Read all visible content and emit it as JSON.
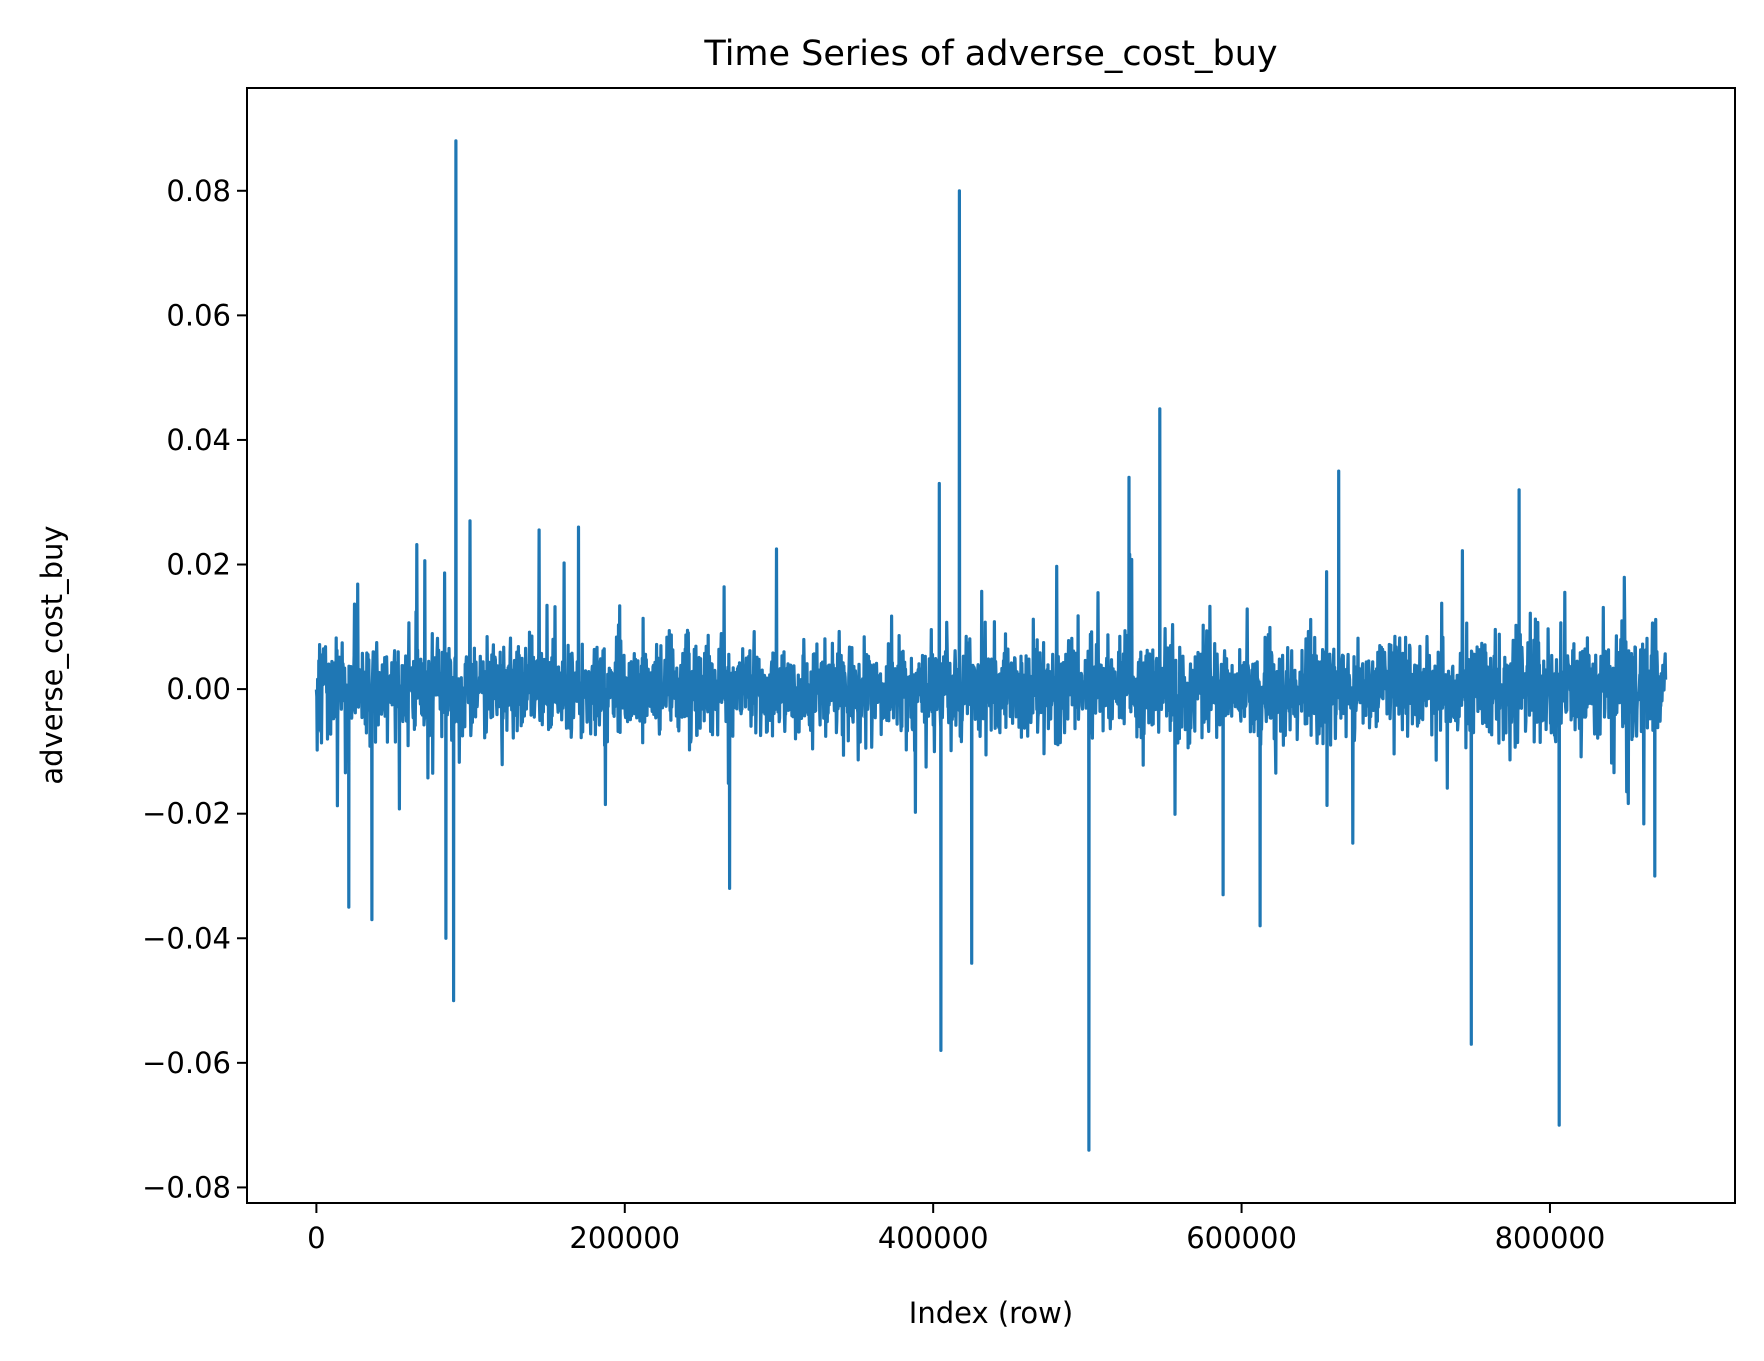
{
  "chart_data": {
    "type": "line",
    "title": "Time Series of adverse_cost_buy",
    "xlabel": "Index (row)",
    "ylabel": "adverse_cost_buy",
    "xlim": [
      -45000,
      920000
    ],
    "ylim": [
      -0.0825,
      0.0965
    ],
    "xticks": [
      0,
      200000,
      400000,
      600000,
      800000
    ],
    "xtick_labels": [
      "0",
      "200000",
      "400000",
      "600000",
      "800000"
    ],
    "yticks": [
      -0.08,
      -0.06,
      -0.04,
      -0.02,
      0.0,
      0.02,
      0.04,
      0.06,
      0.08
    ],
    "ytick_labels": [
      "−0.08",
      "−0.06",
      "−0.04",
      "−0.02",
      "0.00",
      "0.02",
      "0.04",
      "0.06",
      "0.08"
    ],
    "grid": false,
    "legend": "none",
    "series": [
      {
        "color": "#1f77b4",
        "x_range": [
          0,
          875000
        ],
        "notable_points": [
          {
            "x": 21000,
            "y": -0.035
          },
          {
            "x": 36000,
            "y": -0.037
          },
          {
            "x": 84000,
            "y": -0.04
          },
          {
            "x": 89000,
            "y": -0.05
          },
          {
            "x": 90500,
            "y": 0.088
          },
          {
            "x": 170000,
            "y": 0.026
          },
          {
            "x": 268000,
            "y": -0.032
          },
          {
            "x": 405000,
            "y": -0.058
          },
          {
            "x": 404000,
            "y": 0.033
          },
          {
            "x": 417000,
            "y": 0.08
          },
          {
            "x": 425000,
            "y": -0.044
          },
          {
            "x": 501000,
            "y": -0.074
          },
          {
            "x": 527000,
            "y": 0.034
          },
          {
            "x": 547000,
            "y": 0.045
          },
          {
            "x": 588000,
            "y": -0.033
          },
          {
            "x": 612000,
            "y": -0.038
          },
          {
            "x": 663000,
            "y": 0.035
          },
          {
            "x": 749000,
            "y": -0.057
          },
          {
            "x": 780000,
            "y": 0.032
          },
          {
            "x": 806000,
            "y": -0.07
          },
          {
            "x": 868000,
            "y": -0.03
          }
        ]
      }
    ]
  }
}
